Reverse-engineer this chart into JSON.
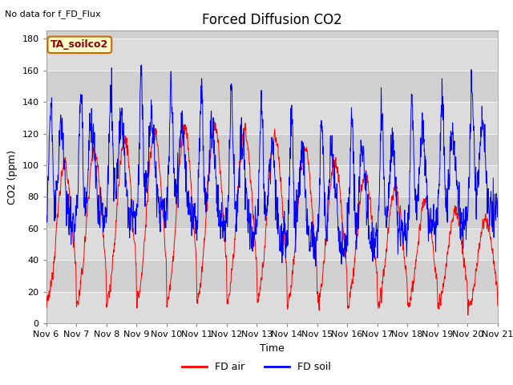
{
  "title": "Forced Diffusion CO2",
  "top_left_text": "No data for f_FD_Flux",
  "ylabel": "CO2 (ppm)",
  "xlabel": "Time",
  "ylim": [
    0,
    185
  ],
  "annotation_box": "TA_soilco2",
  "legend_labels": [
    "FD air",
    "FD soil"
  ],
  "line_colors": [
    "red",
    "blue"
  ],
  "bg_color": "#e8e8e8",
  "yticks": [
    0,
    20,
    40,
    60,
    80,
    100,
    120,
    140,
    160,
    180
  ],
  "xtick_labels": [
    "Nov 6",
    "Nov 7",
    "Nov 8",
    "Nov 9",
    "Nov 10",
    "Nov 11",
    "Nov 12",
    "Nov 13",
    "Nov 14",
    "Nov 15",
    "Nov 16",
    "Nov 17",
    "Nov 18",
    "Nov 19",
    "Nov 20",
    "Nov 21"
  ],
  "title_fontsize": 12,
  "axis_fontsize": 9,
  "tick_fontsize": 8
}
